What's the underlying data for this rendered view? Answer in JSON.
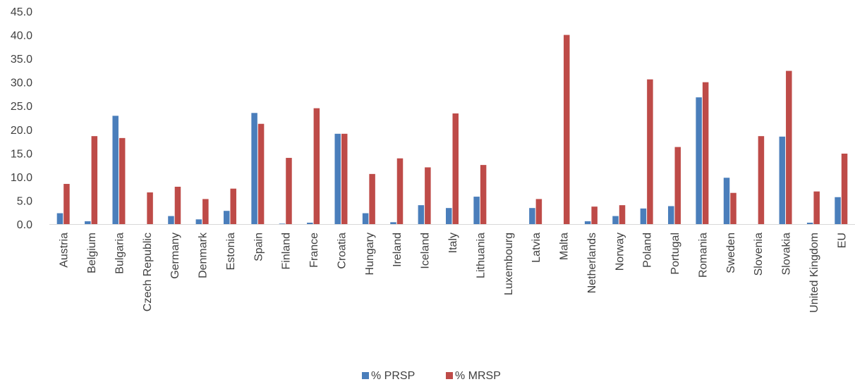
{
  "chart_data": {
    "type": "bar",
    "categories": [
      "Austria",
      "Belgium",
      "Bulgaria",
      "Czech Republic",
      "Germany",
      "Denmark",
      "Estonia",
      "Spain",
      "Finland",
      "France",
      "Croatia",
      "Hungary",
      "Ireland",
      "Iceland",
      "Italy",
      "Lithuania",
      "Luxembourg",
      "Latvia",
      "Malta",
      "Netherlands",
      "Norway",
      "Poland",
      "Portugal",
      "Romania",
      "Sweden",
      "Slovenia",
      "Slovakia",
      "United Kingdom",
      "EU"
    ],
    "series": [
      {
        "name": "% PRSP",
        "color": "#4a7ebb",
        "values": [
          2.3,
          0.6,
          22.9,
          0.0,
          1.7,
          1.0,
          2.8,
          23.5,
          0.1,
          0.3,
          19.1,
          2.3,
          0.4,
          4.0,
          3.4,
          5.8,
          0.0,
          3.4,
          0.0,
          0.6,
          1.7,
          3.3,
          3.8,
          26.8,
          9.8,
          0.0,
          18.5,
          0.3,
          5.7
        ]
      },
      {
        "name": "% MRSP",
        "color": "#be4b48",
        "values": [
          8.5,
          18.6,
          18.2,
          6.7,
          7.9,
          5.3,
          7.5,
          21.2,
          14.0,
          24.5,
          19.1,
          10.6,
          13.9,
          12.0,
          23.4,
          12.5,
          0.0,
          5.3,
          40.0,
          3.7,
          4.0,
          30.6,
          16.3,
          30.0,
          6.6,
          18.6,
          32.4,
          6.9,
          14.9
        ]
      }
    ],
    "yticks": [
      "0.0",
      "5.0",
      "10.0",
      "15.0",
      "20.0",
      "25.0",
      "30.0",
      "35.0",
      "40.0",
      "45.0"
    ],
    "ylim": [
      0,
      45
    ],
    "legend_position": "bottom-center",
    "grid": false
  }
}
